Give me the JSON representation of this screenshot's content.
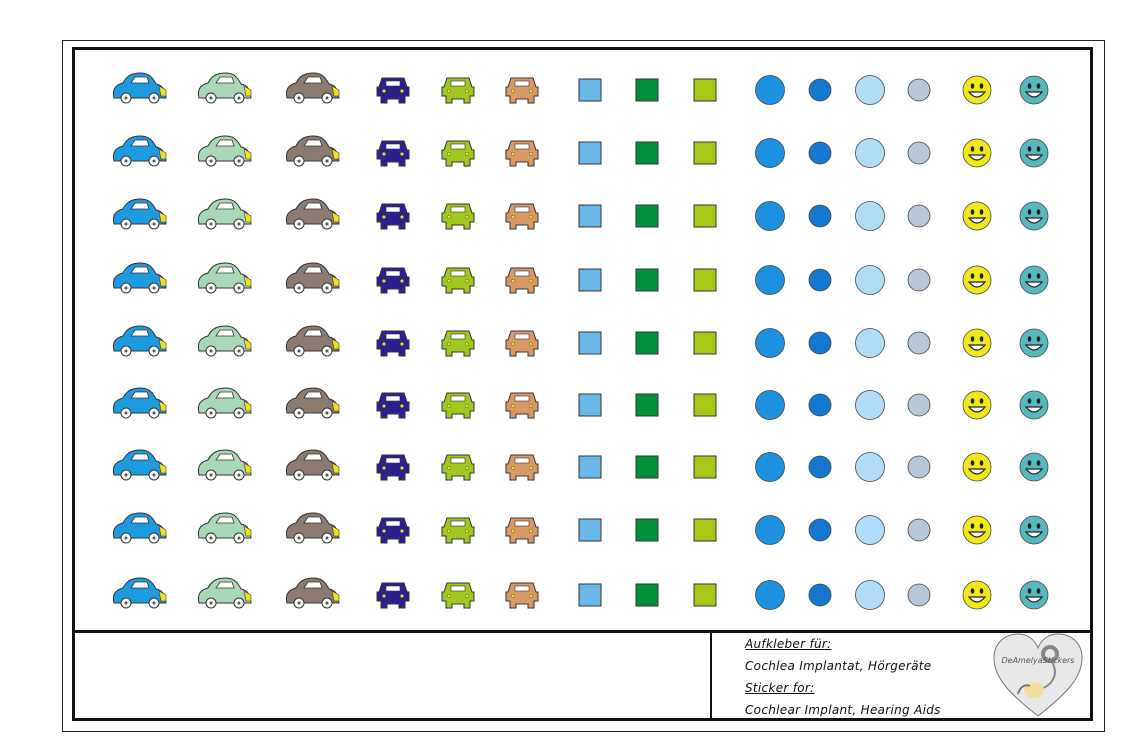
{
  "sheet": {
    "columns": [
      {
        "type": "car-side",
        "color": "#1E9BE0"
      },
      {
        "type": "car-side",
        "color": "#A8D8B8"
      },
      {
        "type": "car-side",
        "color": "#8B7B70"
      },
      {
        "type": "car-front",
        "color": "#2A2090"
      },
      {
        "type": "car-front",
        "color": "#A0C820"
      },
      {
        "type": "car-front",
        "color": "#D89868"
      },
      {
        "type": "square",
        "color": "#6AB8E8"
      },
      {
        "type": "square",
        "color": "#00913A"
      },
      {
        "type": "square",
        "color": "#A8C818"
      },
      {
        "type": "circle-large",
        "color": "#1E90E0"
      },
      {
        "type": "circle-small",
        "color": "#1478D0"
      },
      {
        "type": "circle-large",
        "color": "#B0DCF8"
      },
      {
        "type": "circle-small",
        "color": "#B8C8D8"
      },
      {
        "type": "smiley",
        "color": "#F0E818"
      },
      {
        "type": "smiley",
        "color": "#58B8C0"
      }
    ],
    "rows": 9
  },
  "footer": {
    "label_de": "Aufkleber für:",
    "text_de": "Cochlea Implantat, Hörgeräte",
    "label_en": "Sticker for:",
    "text_en": "Cochlear Implant, Hearing Aids",
    "logo_text": "DeAmelyaStickers"
  }
}
